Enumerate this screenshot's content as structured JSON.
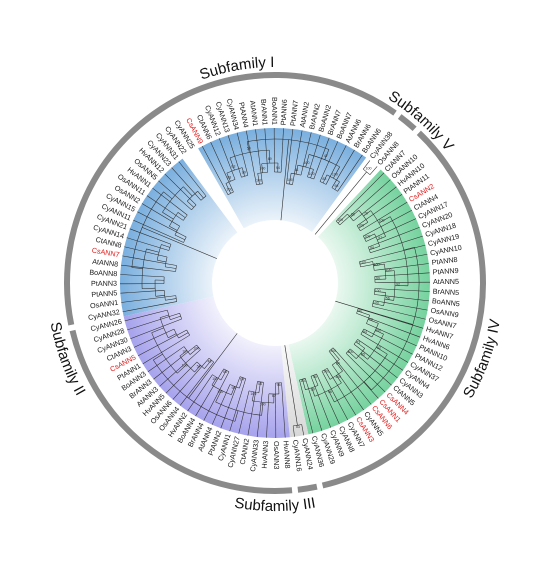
{
  "figure": {
    "description_free": true,
    "leaves_clockwise_from_top": [
      "CsANN9",
      "CtANN6",
      "CyANN12",
      "CyANN13",
      "CyANN34",
      "PtANN4",
      "AtANN1",
      "BrANN1",
      "BoANN1",
      "PtANN6",
      "PtANN7",
      "AtANN2",
      "BrANN2",
      "BoANN2",
      "BrANN7",
      "BoANN7",
      "AtANN6",
      "BrANN6",
      "BoANN6",
      "CyANN38",
      "OsANN8",
      "CtANN7",
      "OsANN10",
      "HvANN10",
      "PtANN11",
      "CsANN2",
      "CtANN4",
      "CyANN17",
      "CyANN20",
      "CyANN18",
      "CyANN19",
      "CyANN10",
      "PtANN8",
      "PtANN9",
      "AtANN5",
      "BrANN5",
      "BoANN5",
      "OsANN9",
      "OsANN7",
      "HvANN7",
      "HvANN6",
      "PtANN10",
      "PtANN12",
      "CyANN37",
      "CyANN4",
      "CyANN3",
      "CtANN5",
      "CsANN4",
      "CsANN1",
      "CsANN6",
      "CyANN5",
      "CsANN3",
      "CyANN7",
      "CyANN8",
      "CyANN9",
      "CyANN29",
      "CyANN36",
      "CyANN24",
      "CyANN16",
      "HvANN8",
      "OsANN3",
      "HvANN3",
      "CyANN33",
      "CtANN2",
      "CyANN27",
      "CyANN1",
      "PtANN2",
      "AtANN4",
      "BrANN4",
      "BoANN4",
      "HvANN2",
      "OsANN4",
      "OsANN6",
      "HvANN5",
      "AtANN3",
      "BrANN3",
      "BoANN3",
      "PtANN1",
      "CsANN5",
      "CtANN3",
      "CyANN30",
      "CyANN28",
      "CyANN26",
      "CyANN32",
      "OsANN1",
      "PtANN5",
      "PtANN3",
      "BoANN8",
      "AtANN8",
      "CsANN7",
      "CtANN8",
      "CyANN14",
      "CyANN21",
      "CyANN11",
      "CyANN15",
      "OsANN2",
      "OsANN11",
      "HvANN1",
      "OsANN5",
      "HvANN12",
      "CyANN23",
      "CyANN31",
      "CyANN22",
      "CyANN25"
    ],
    "highlighted_leaves": [
      "CsANN9",
      "CsANN2",
      "CsANN4",
      "CsANN1",
      "CsANN6",
      "CsANN3",
      "CsANN5",
      "CsANN7"
    ],
    "subfamilies": [
      {
        "label": "Subfamily I",
        "color": "#3f8fd4"
      },
      {
        "label": "Subfamily V",
        "color": "#f2f2f2"
      },
      {
        "label": "Subfamily IV",
        "color": "#2fbf6a"
      },
      {
        "label": "Subfamily III",
        "color": "#cfcfcf"
      },
      {
        "label": "Subfamily II",
        "color": "#7b74e8"
      }
    ],
    "bootstrap_values": [
      "100",
      "98",
      "99",
      "83",
      "100",
      "100",
      "94",
      "69",
      "59",
      "100",
      "61",
      "100",
      "100",
      "83",
      "98",
      "100",
      "47",
      "100",
      "100",
      "88",
      "100",
      "79",
      "100",
      "88",
      "97",
      "100",
      "100",
      "100",
      "99",
      "100",
      "100",
      "100",
      "56",
      "92",
      "90",
      "60",
      "94",
      "100",
      "73",
      "100",
      "55",
      "92",
      "100",
      "94",
      "100",
      "100",
      "90",
      "100",
      "89",
      "96",
      "53",
      "96",
      "67",
      "56",
      "100",
      "100",
      "64",
      "93",
      "55",
      "100",
      "100",
      "48",
      "54",
      "100",
      "97",
      "100"
    ]
  }
}
